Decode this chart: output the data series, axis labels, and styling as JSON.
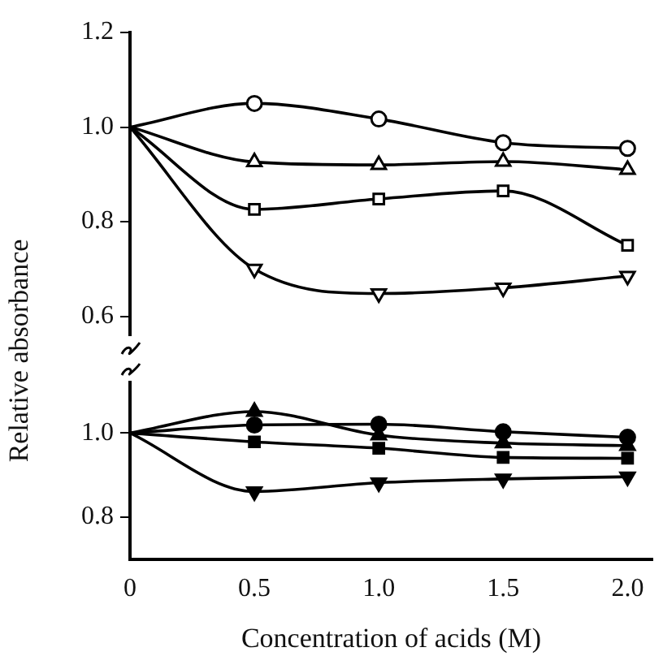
{
  "chart_data": [
    {
      "type": "line",
      "ylabel": "Relative absorbance",
      "x": [
        0,
        0.5,
        1.0,
        1.5,
        2.0
      ],
      "ylim": [
        0.56,
        1.2
      ],
      "yticks": [
        0.6,
        0.8,
        {
          "value": 1,
          "label": "1.0"
        },
        1.2
      ],
      "tick_labels": "y",
      "grid": false,
      "legend": false,
      "series": [
        {
          "color": "#000000",
          "marker": "circle",
          "values": [
            1.0,
            1.05,
            1.017,
            0.967,
            0.955
          ]
        },
        {
          "color": "#000000",
          "marker": "triangle",
          "values": [
            1.0,
            0.926,
            0.92,
            0.927,
            0.91
          ]
        },
        {
          "color": "#000000",
          "marker": "square",
          "values": [
            1.0,
            0.826,
            0.848,
            0.865,
            0.75
          ]
        },
        {
          "color": "#000000",
          "marker": "triangle",
          "values": [
            1.0,
            0.7,
            0.648,
            0.66,
            0.685
          ]
        }
      ]
    },
    {
      "type": "line",
      "xlabel": "Concentration of acids (M)",
      "x": [
        0,
        0.5,
        1.0,
        1.5,
        2.0
      ],
      "xlim": [
        0,
        2.1
      ],
      "xticks": [
        0,
        0.5,
        {
          "value": 1,
          "label": "1.0"
        },
        1.5,
        {
          "value": 2,
          "label": "2.0"
        }
      ],
      "ylim": [
        0.7,
        1.12
      ],
      "yticks": [
        0.8,
        {
          "value": 1,
          "label": "1.0"
        }
      ],
      "grid": false,
      "legend": false,
      "series": [
        {
          "color": "#000000",
          "marker": "circle",
          "values": [
            1.0,
            1.019,
            1.021,
            1.003,
            0.99
          ]
        },
        {
          "color": "#000000",
          "marker": "triangle",
          "values": [
            1.0,
            1.051,
            0.995,
            0.976,
            0.97
          ]
        },
        {
          "color": "#000000",
          "marker": "square",
          "values": [
            1.0,
            0.979,
            0.964,
            0.942,
            0.94
          ]
        },
        {
          "color": "#000000",
          "marker": "triangle",
          "values": [
            1.0,
            0.861,
            0.882,
            0.891,
            0.896
          ]
        }
      ]
    }
  ]
}
